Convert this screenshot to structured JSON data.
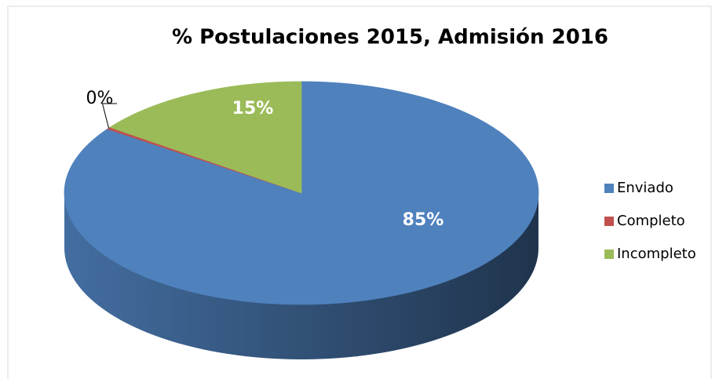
{
  "chart_data": {
    "type": "pie3d",
    "title": "% Postulaciones 2015, Admisión 2016",
    "series": [
      {
        "name": "Enviado",
        "color": "#4f81bd",
        "values": [
          85
        ],
        "value_labels": [
          "85%"
        ]
      },
      {
        "name": "Completo",
        "color": "#c0504d",
        "values": [
          0.3
        ],
        "value_labels": [
          "0%"
        ]
      },
      {
        "name": "Incompleto",
        "color": "#9bbb59",
        "values": [
          15
        ],
        "value_labels": [
          "15%"
        ]
      }
    ],
    "legend": "right"
  }
}
